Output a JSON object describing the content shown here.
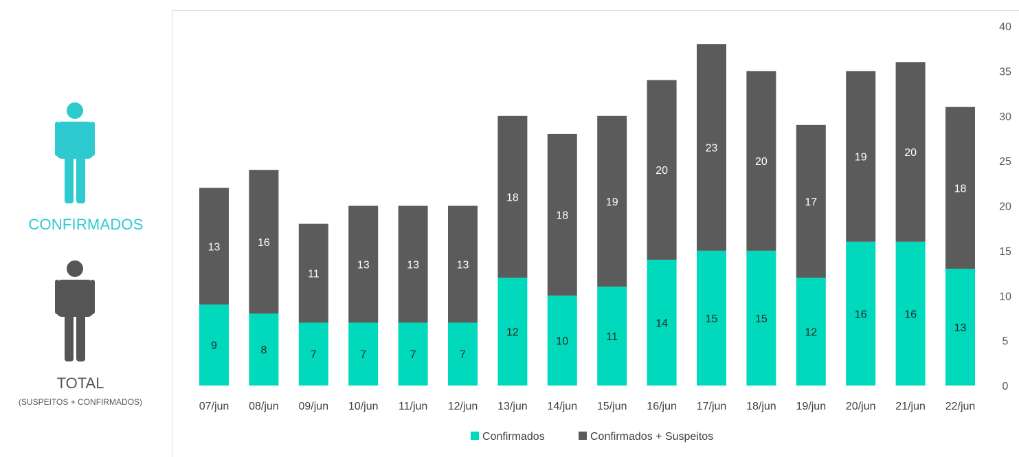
{
  "side": {
    "confirmed_label": "CONFIRMADOS",
    "total_label": "TOTAL",
    "total_sublabel": "(SUSPEITOS + CONFIRMADOS)",
    "confirmed_icon": "person-icon",
    "total_icon": "person-icon"
  },
  "colors": {
    "confirmed": "#00d9bb",
    "total": "#5b5b5b",
    "confirmed_icon": "#2ecad0",
    "total_icon": "#555555"
  },
  "chart_data": {
    "type": "bar",
    "stacked": true,
    "categories": [
      "07/jun",
      "08/jun",
      "09/jun",
      "10/jun",
      "11/jun",
      "12/jun",
      "13/jun",
      "14/jun",
      "15/jun",
      "16/jun",
      "17/jun",
      "18/jun",
      "19/jun",
      "20/jun",
      "21/jun",
      "22/jun"
    ],
    "series": [
      {
        "name": "Confirmados",
        "values": [
          9,
          8,
          7,
          7,
          7,
          7,
          12,
          10,
          11,
          14,
          15,
          15,
          12,
          16,
          16,
          13
        ]
      },
      {
        "name": "Confirmados + Suspeitos",
        "values": [
          13,
          16,
          11,
          13,
          13,
          13,
          18,
          18,
          19,
          20,
          23,
          20,
          17,
          19,
          20,
          18
        ]
      }
    ],
    "ylim": [
      0,
      40
    ],
    "yticks": [
      0,
      5,
      10,
      15,
      20,
      25,
      30,
      35,
      40
    ],
    "yaxis_position": "right",
    "grid": false,
    "legend": "bottom"
  }
}
